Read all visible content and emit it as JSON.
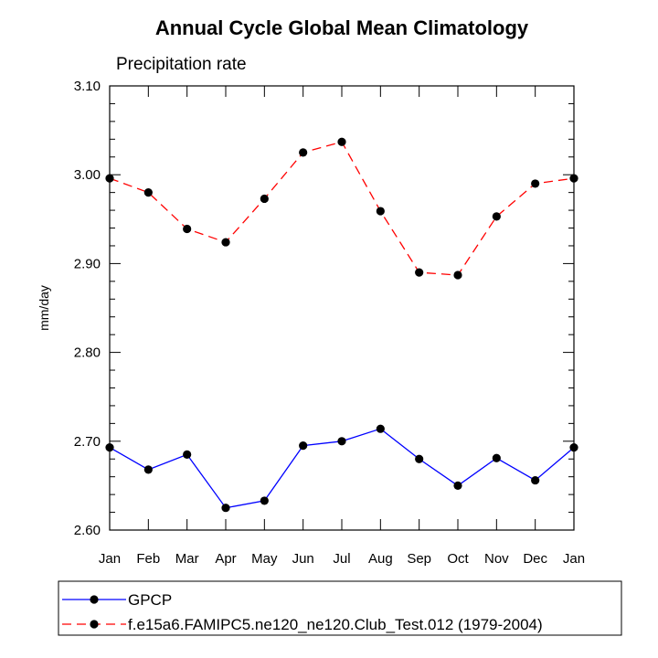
{
  "chart_data": {
    "type": "line",
    "title": "Annual Cycle Global Mean Climatology",
    "subtitle": "Precipitation rate",
    "xlabel": "",
    "ylabel": "mm/day",
    "categories": [
      "Jan",
      "Feb",
      "Mar",
      "Apr",
      "May",
      "Jun",
      "Jul",
      "Aug",
      "Sep",
      "Oct",
      "Nov",
      "Dec",
      "Jan"
    ],
    "ylim": [
      2.6,
      3.1
    ],
    "yticks": [
      "2.60",
      "2.70",
      "2.80",
      "2.90",
      "3.00",
      "3.10"
    ],
    "legend_position": "bottom",
    "series": [
      {
        "name": "GPCP",
        "color": "#0000ff",
        "dash": "solid",
        "values": [
          2.693,
          2.668,
          2.685,
          2.625,
          2.633,
          2.695,
          2.7,
          2.714,
          2.68,
          2.65,
          2.681,
          2.656,
          2.693
        ]
      },
      {
        "name": "f.e15a6.FAMIPC5.ne120_ne120.Club_Test.012 (1979-2004)",
        "color": "#ff0000",
        "dash": "dashed",
        "values": [
          2.996,
          2.98,
          2.939,
          2.924,
          2.973,
          3.025,
          3.037,
          2.959,
          2.89,
          2.887,
          2.953,
          2.99,
          2.996
        ]
      }
    ]
  }
}
